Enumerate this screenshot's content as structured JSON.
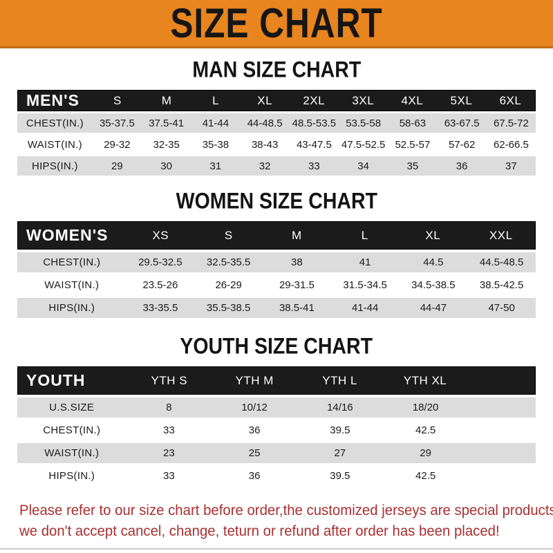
{
  "banner": {
    "title": "SIZE CHART"
  },
  "sections": {
    "men": {
      "heading": "MAN SIZE CHART",
      "table": {
        "header": [
          "MEN'S",
          "S",
          "M",
          "L",
          "XL",
          "2XL",
          "3XL",
          "4XL",
          "5XL",
          "6XL"
        ],
        "rows": [
          [
            "CHEST(IN.)",
            "35-37.5",
            "37.5-41",
            "41-44",
            "44-48.5",
            "48.5-53.5",
            "53.5-58",
            "58-63",
            "63-67.5",
            "67.5-72"
          ],
          [
            "WAIST(IN.)",
            "29-32",
            "32-35",
            "35-38",
            "38-43",
            "43-47.5",
            "47.5-52.5",
            "52.5-57",
            "57-62",
            "62-66.5"
          ],
          [
            "HIPS(IN.)",
            "29",
            "30",
            "31",
            "32",
            "33",
            "34",
            "35",
            "36",
            "37"
          ]
        ]
      }
    },
    "women": {
      "heading": "WOMEN SIZE CHART",
      "table": {
        "header": [
          "WOMEN'S",
          "XS",
          "S",
          "M",
          "L",
          "XL",
          "XXL"
        ],
        "rows": [
          [
            "CHEST(IN.)",
            "29.5-32.5",
            "32.5-35.5",
            "38",
            "41",
            "44.5",
            "44.5-48.5"
          ],
          [
            "WAIST(IN.)",
            "23.5-26",
            "26-29",
            "29-31.5",
            "31.5-34.5",
            "34.5-38.5",
            "38.5-42.5"
          ],
          [
            "HIPS(IN.)",
            "33-35.5",
            "35.5-38.5",
            "38.5-41",
            "41-44",
            "44-47",
            "47-50"
          ]
        ]
      }
    },
    "youth": {
      "heading": "YOUTH SIZE CHART",
      "table": {
        "header": [
          "YOUTH",
          "YTH S",
          "YTH M",
          "YTH L",
          "YTH XL"
        ],
        "rows": [
          [
            "U.S.SIZE",
            "8",
            "10/12",
            "14/16",
            "18/20"
          ],
          [
            "CHEST(IN.)",
            "33",
            "36",
            "39.5",
            "42.5"
          ],
          [
            "WAIST(IN.)",
            "23",
            "25",
            "27",
            "29"
          ],
          [
            "HIPS(IN.)",
            "33",
            "36",
            "39.5",
            "42.5"
          ]
        ]
      }
    }
  },
  "footer": {
    "line1": "Please refer to our size chart before order,the customized jerseys are special products,",
    "line2": "we don't accept cancel, change, teturn or refund after order has been placed!"
  },
  "colors": {
    "banner_orange": "#E8851F",
    "table_header_black": "#1B1B1B",
    "row_stripe_gray": "#DCDCDC",
    "note_red": "#A93030"
  }
}
